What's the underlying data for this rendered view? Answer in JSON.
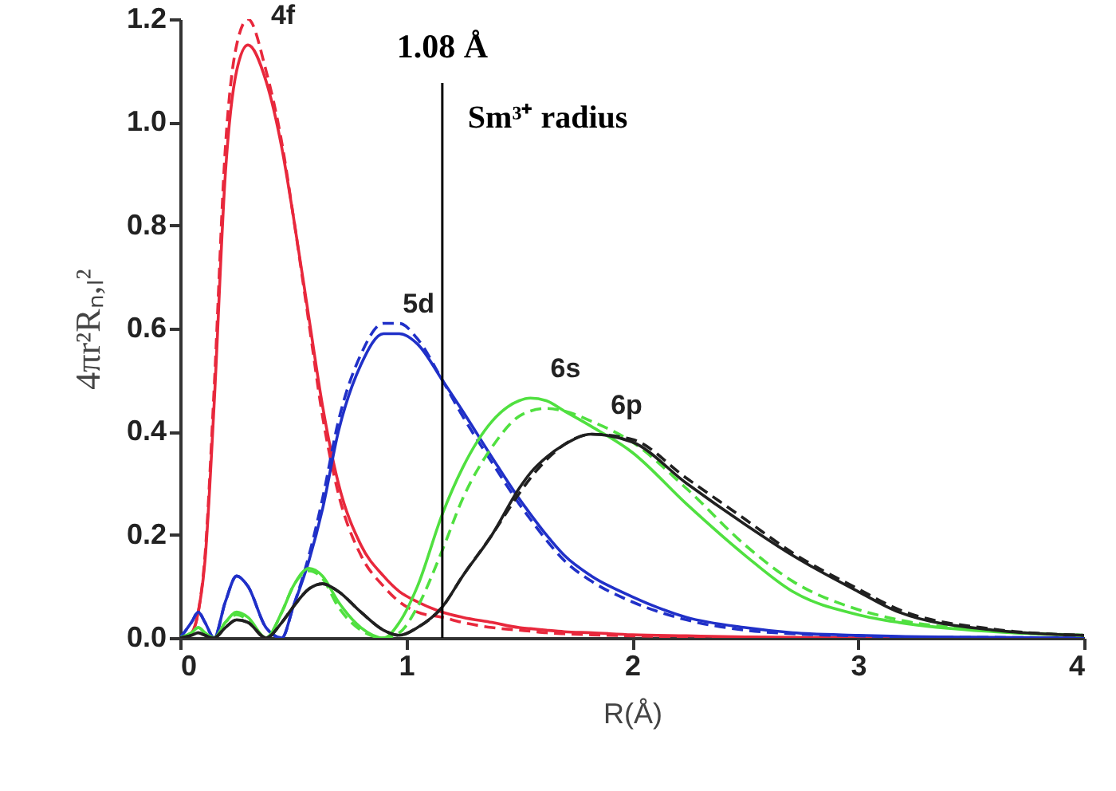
{
  "chart_data": {
    "type": "line",
    "xlabel": "R(Å)",
    "ylabel": "4πr²Rₙ,ₗ²",
    "x": [
      0,
      0.05,
      0.08,
      0.11,
      0.15,
      0.2,
      0.25,
      0.3,
      0.38,
      0.45,
      0.5,
      0.57,
      0.63,
      0.7,
      0.8,
      0.9,
      0.97,
      1.05,
      1.16,
      1.25,
      1.38,
      1.5,
      1.55,
      1.62,
      1.7,
      1.82,
      2,
      2.24,
      2.5,
      2.71,
      3,
      3.18,
      3.6,
      4
    ],
    "series": [
      {
        "name": "4f",
        "color": "#e8283c",
        "line_style": "solid",
        "values": [
          0,
          0.01,
          0.05,
          0.15,
          0.45,
          0.9,
          1.1,
          1.15,
          1.08,
          0.95,
          0.82,
          0.62,
          0.45,
          0.3,
          0.18,
          0.12,
          0.09,
          0.07,
          0.05,
          0.04,
          0.03,
          0.02,
          0.018,
          0.015,
          0.012,
          0.01,
          0.006,
          0.004,
          0.002,
          0.001,
          0,
          0,
          null,
          null
        ]
      },
      {
        "color": "#e8283c",
        "line_style": "dashed",
        "values": [
          0,
          0.01,
          0.05,
          0.16,
          0.48,
          0.95,
          1.15,
          1.2,
          1.1,
          0.96,
          0.82,
          0.61,
          0.43,
          0.28,
          0.16,
          0.1,
          0.07,
          0.05,
          0.04,
          0.03,
          0.02,
          0.015,
          0.013,
          0.01,
          0.008,
          0.006,
          0.004,
          0.002,
          0.001,
          0,
          0,
          0,
          0,
          0
        ]
      },
      {
        "name": "5d",
        "color": "#2030c8",
        "line_style": "solid",
        "values": [
          0,
          0.03,
          0.05,
          0.03,
          0,
          0.07,
          0.12,
          0.1,
          0.02,
          0,
          0.06,
          0.15,
          0.25,
          0.4,
          0.53,
          0.59,
          0.59,
          0.57,
          0.5,
          0.44,
          0.35,
          0.27,
          0.24,
          0.2,
          0.16,
          0.12,
          0.08,
          0.04,
          0.02,
          0.01,
          0.005,
          0.003,
          0.001,
          0
        ]
      },
      {
        "color": "#2030c8",
        "line_style": "dashed",
        "values": [
          0,
          0.03,
          0.05,
          0.03,
          0,
          0.07,
          0.12,
          0.1,
          0.02,
          0,
          0.06,
          0.16,
          0.27,
          0.42,
          0.55,
          0.61,
          0.61,
          0.58,
          0.5,
          0.43,
          0.34,
          0.26,
          0.23,
          0.19,
          0.15,
          0.11,
          0.07,
          0.035,
          0.015,
          0.008,
          0.004,
          0.002,
          0.001,
          0
        ]
      },
      {
        "name": "6s",
        "color": "#50e040",
        "line_style": "solid",
        "values": [
          0,
          0.01,
          0.02,
          0.01,
          0,
          0.03,
          0.05,
          0.04,
          0,
          0.05,
          0.1,
          0.135,
          0.12,
          0.07,
          0.02,
          0,
          0.03,
          0.1,
          0.24,
          0.33,
          0.42,
          0.46,
          0.465,
          0.46,
          0.44,
          0.41,
          0.36,
          0.26,
          0.16,
          0.09,
          0.045,
          0.03,
          0.012,
          0.005
        ]
      },
      {
        "color": "#50e040",
        "line_style": "dashed",
        "values": [
          0,
          0.01,
          0.02,
          0.01,
          0,
          0.03,
          0.045,
          0.035,
          0,
          0.05,
          0.1,
          0.13,
          0.115,
          0.06,
          0.015,
          0,
          0.01,
          0.06,
          0.17,
          0.27,
          0.37,
          0.43,
          0.44,
          0.445,
          0.44,
          0.42,
          0.38,
          0.29,
          0.18,
          0.11,
          0.055,
          0.035,
          0.014,
          0.005
        ]
      },
      {
        "name": "6p",
        "color": "#202020",
        "line_style": "solid",
        "values": [
          0,
          0.005,
          0.01,
          0.005,
          0,
          0.02,
          0.035,
          0.03,
          0,
          0.03,
          0.06,
          0.095,
          0.105,
          0.09,
          0.05,
          0.015,
          0.005,
          0.02,
          0.06,
          0.12,
          0.2,
          0.29,
          0.32,
          0.35,
          0.375,
          0.395,
          0.38,
          0.3,
          0.22,
          0.16,
          0.09,
          0.05,
          0.015,
          0.005
        ]
      },
      {
        "color": "#202020",
        "line_style": "dashed",
        "values": [
          0,
          0.005,
          0.01,
          0.005,
          0,
          0.02,
          0.035,
          0.03,
          0,
          0.03,
          0.06,
          0.095,
          0.105,
          0.09,
          0.05,
          0.015,
          0.005,
          0.02,
          0.06,
          0.12,
          0.2,
          0.28,
          0.31,
          0.345,
          0.375,
          0.395,
          0.385,
          0.31,
          0.23,
          0.165,
          0.095,
          0.055,
          0.017,
          0.005
        ]
      }
    ],
    "xlim": [
      0,
      4
    ],
    "xticks": [
      0,
      1,
      2,
      3,
      4
    ],
    "ylim": [
      0,
      1.2
    ],
    "yticks": [
      {
        "value": 0,
        "label": "0.0"
      },
      {
        "value": 0.2,
        "label": "0.2"
      },
      {
        "value": 0.4,
        "label": "0.4"
      },
      {
        "value": 0.6,
        "label": "0.6"
      },
      {
        "value": 0.8,
        "label": "0.8"
      },
      {
        "value": 1.0,
        "label": "1.0"
      },
      {
        "value": 1.2,
        "label": "1.2"
      }
    ],
    "ref_lines": [
      {
        "axis": "x",
        "value": 1.16,
        "label": "1.08 Å"
      }
    ],
    "annotations": [
      "Sm³⁺ radius"
    ],
    "grid": false
  }
}
